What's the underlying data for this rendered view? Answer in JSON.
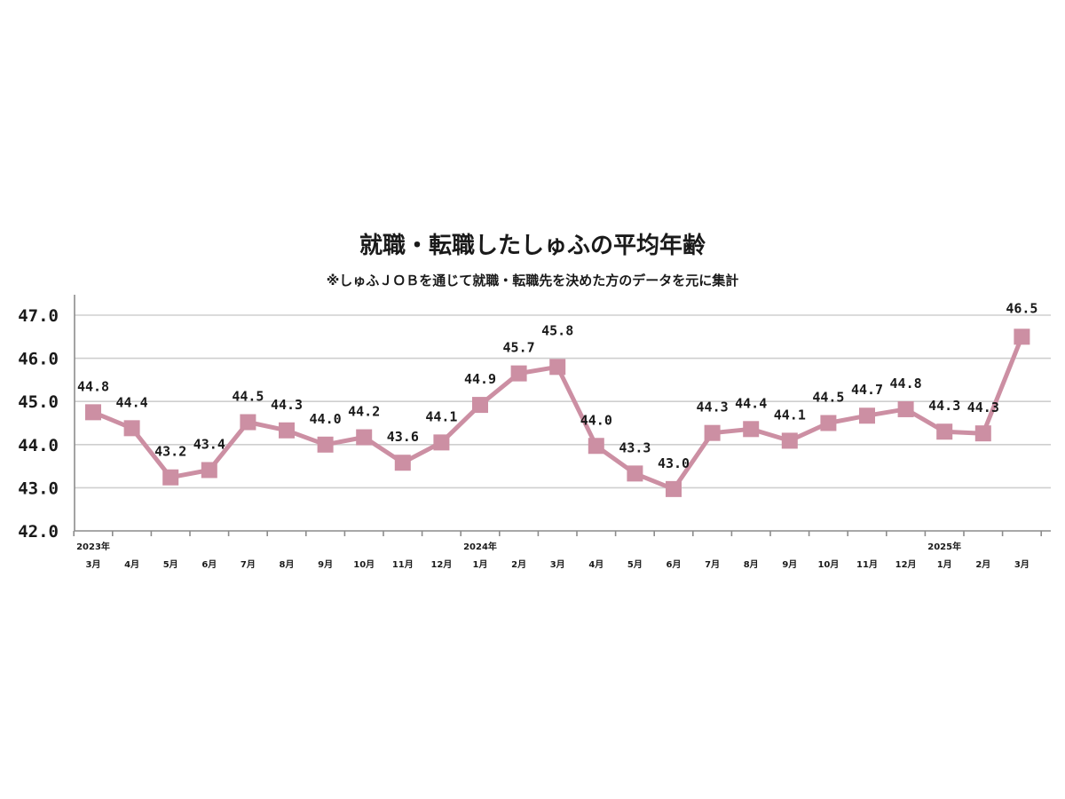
{
  "chart_data": {
    "type": "line",
    "title": "就職・転職したしゅふの平均年齢",
    "subtitle": "※しゅふＪＯＢを通じて就職・転職先を決めた方のデータを元に集計",
    "xlabel": "",
    "ylabel": "",
    "ylim": [
      42.0,
      47.0
    ],
    "yticks": [
      "42.0",
      "43.0",
      "44.0",
      "45.0",
      "46.0",
      "47.0"
    ],
    "grid": true,
    "categories": [
      "3月",
      "4月",
      "5月",
      "6月",
      "7月",
      "8月",
      "9月",
      "10月",
      "11月",
      "12月",
      "1月",
      "2月",
      "3月",
      "4月",
      "5月",
      "6月",
      "7月",
      "8月",
      "9月",
      "10月",
      "11月",
      "12月",
      "1月",
      "2月",
      "3月"
    ],
    "year_labels": [
      {
        "index": 0,
        "label": "2023年"
      },
      {
        "index": 10,
        "label": "2024年"
      },
      {
        "index": 22,
        "label": "2025年"
      }
    ],
    "series": [
      {
        "name": "平均年齢",
        "color": "#cc8fa3",
        "values": [
          44.75,
          44.38,
          43.24,
          43.41,
          44.52,
          44.33,
          44.0,
          44.17,
          43.58,
          44.05,
          44.92,
          45.65,
          45.8,
          43.97,
          43.33,
          42.97,
          44.27,
          44.36,
          44.09,
          44.5,
          44.67,
          44.82,
          44.3,
          44.26,
          46.5
        ],
        "labels": [
          "44.8",
          "44.4",
          "43.2",
          "43.4",
          "44.5",
          "44.3",
          "44.0",
          "44.2",
          "43.6",
          "44.1",
          "44.9",
          "45.7",
          "45.8",
          "44.0",
          "43.3",
          "43.0",
          "44.3",
          "44.4",
          "44.1",
          "44.5",
          "44.7",
          "44.8",
          "44.3",
          "44.3",
          "46.5"
        ]
      }
    ]
  }
}
